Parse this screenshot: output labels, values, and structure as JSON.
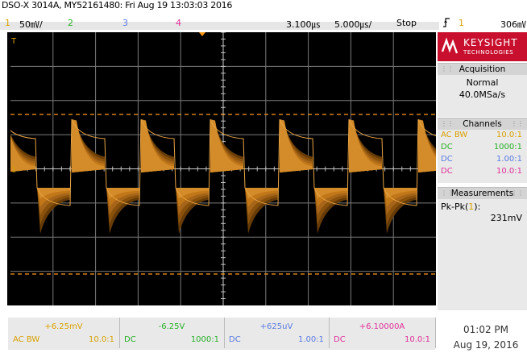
{
  "header": {
    "title": "DSO-X 3014A, MY52161480: Fri Aug 19 13:03:03 2016",
    "ch1": {
      "num": "1",
      "scale": "50㎷/"
    },
    "ch2": {
      "num": "2"
    },
    "ch3": {
      "num": "3"
    },
    "ch4": {
      "num": "4"
    },
    "delay": "3.100㎲",
    "timebase": "5.000㎲/",
    "run_state": "Stop",
    "trig_icon": "trigger-edge-icon",
    "trig_ch": "1",
    "trig_level": "306㎷"
  },
  "colors": {
    "ch1": "#d8a000",
    "ch2": "#26b026",
    "ch3": "#5a7be0",
    "ch4": "#e0309a",
    "trace": "#c27818",
    "cursor": "#ff9a1a",
    "grid": "#7a7a7a"
  },
  "panel": {
    "logo_name": "KEYSIGHT",
    "logo_sub": "TECHNOLOGIES",
    "acquisition": {
      "title": "Acquisition",
      "mode": "Normal",
      "rate": "40.0MSa/s"
    },
    "channels": {
      "title": "Channels",
      "rows": [
        {
          "coupling": "AC BW",
          "ratio": "10.0:1",
          "color": "#d8a000"
        },
        {
          "coupling": "DC",
          "ratio": "1000:1",
          "color": "#26b026"
        },
        {
          "coupling": "DC",
          "ratio": "1.00:1",
          "color": "#5a7be0"
        },
        {
          "coupling": "DC",
          "ratio": "10.0:1",
          "color": "#e0309a"
        }
      ]
    },
    "measurements": {
      "title": "Measurements",
      "name": "Pk-Pk(",
      "src": "1",
      "close": "):",
      "value": "231mV"
    }
  },
  "bottom": {
    "cells": [
      {
        "offset": "+6.25mV",
        "coupling": "AC  BW",
        "ratio": "10.0:1",
        "color": "#d8a000"
      },
      {
        "offset": "-6.25V",
        "coupling": "DC",
        "ratio": "1000:1",
        "color": "#26b026"
      },
      {
        "offset": "+625uV",
        "coupling": "DC",
        "ratio": "1.00:1",
        "color": "#5a7be0"
      },
      {
        "offset": "+6.10000A",
        "coupling": "DC",
        "ratio": "10.0:1",
        "color": "#e0309a"
      }
    ]
  },
  "clock": {
    "time": "01:02 PM",
    "date": "Aug 19, 2016"
  },
  "markers": {
    "ground_ch": "1",
    "trig_ch": "T"
  }
}
